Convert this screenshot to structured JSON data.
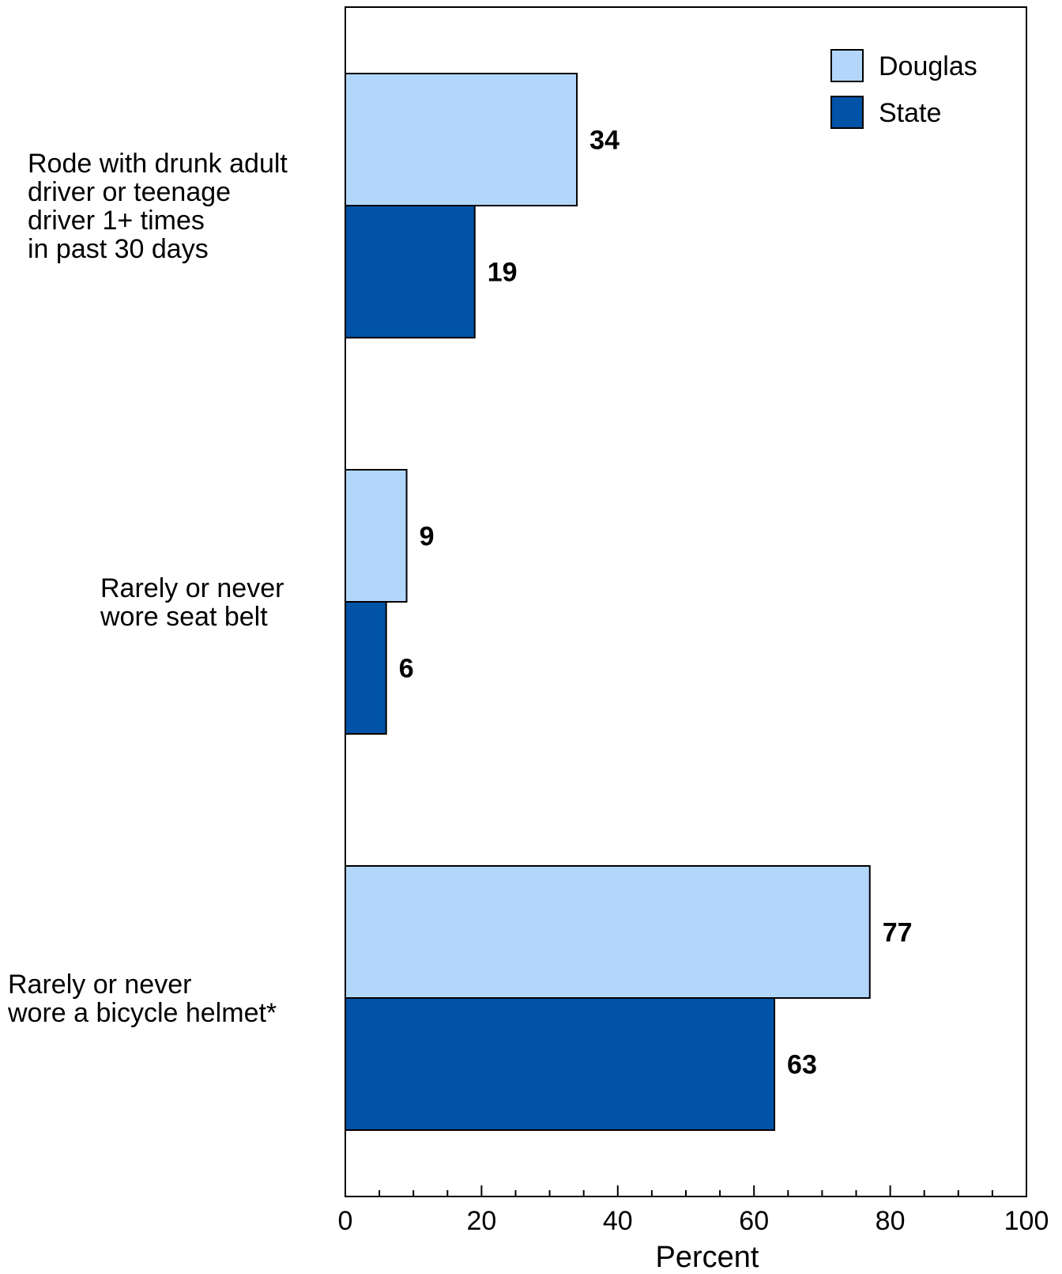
{
  "chart_data": {
    "type": "bar",
    "orientation": "horizontal",
    "categories": [
      [
        "Rode with drunk adult",
        "driver or teenage",
        "driver 1+ times",
        "in past 30 days"
      ],
      [
        "Rarely or never",
        "wore seat belt"
      ],
      [
        "Rarely or never",
        "wore a bicycle helmet*"
      ]
    ],
    "series": [
      {
        "name": "Douglas",
        "color": "#b3d7fb",
        "values": [
          34,
          9,
          77
        ]
      },
      {
        "name": "State",
        "color": "#0053a6",
        "values": [
          19,
          6,
          63
        ]
      }
    ],
    "xlabel": "Percent",
    "xlim": [
      0,
      100
    ],
    "xticks": [
      0,
      20,
      40,
      60,
      80,
      100
    ],
    "grid": false,
    "legend_position": "top-right"
  }
}
